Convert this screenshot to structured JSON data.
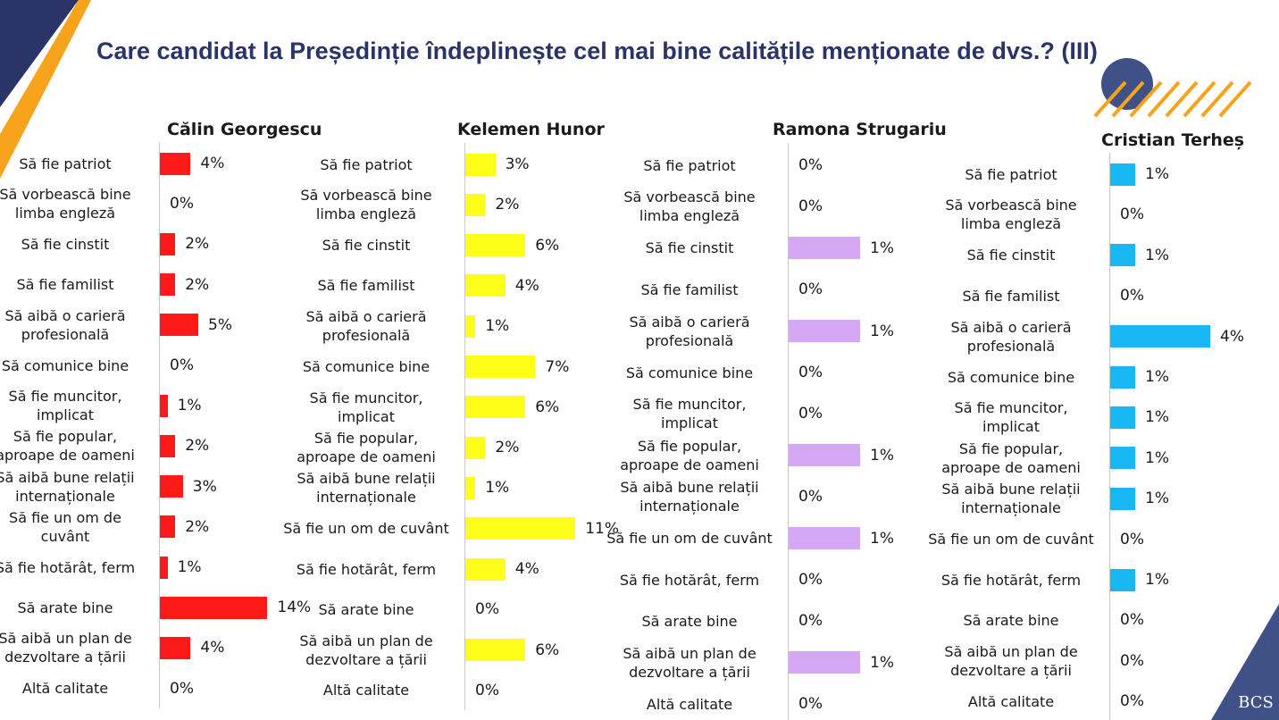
{
  "title": "Care candidat la Președinție îndeplinește cel mai bine calitățile menționate de dvs.? (III)",
  "logo_text": "BCS",
  "colors": {
    "navy": "#2b3467",
    "orange": "#f7a31c",
    "slate": "#3f5187"
  },
  "chart_data": [
    {
      "type": "bar",
      "orientation": "horizontal",
      "title": "Călin Georgescu",
      "color": "#ff1a1a",
      "categories": [
        "Să fie patriot",
        "Să vorbească bine limba engleză",
        "Să fie cinstit",
        "Să fie familist",
        "Să aibă o carieră profesională",
        "Să comunice bine",
        "Să fie muncitor, implicat",
        "Să fie popular, aproape de oameni",
        "Să aibă bune relații internaționale",
        "Să fie un om de cuvânt",
        "Să fie hotărât, ferm",
        "Să arate bine",
        "Să aibă un plan de dezvoltare a țării",
        "Altă calitate"
      ],
      "category_lines": [
        [
          "Să fie patriot"
        ],
        [
          "Să vorbească bine",
          "limba engleză"
        ],
        [
          "Să fie cinstit"
        ],
        [
          "Să fie familist"
        ],
        [
          "Să aibă o carieră",
          "profesională"
        ],
        [
          "Să comunice bine"
        ],
        [
          "Să fie muncitor,",
          "implicat"
        ],
        [
          "Să fie popular,",
          "aproape de oameni"
        ],
        [
          "Să aibă bune relații",
          "internaționale"
        ],
        [
          "Să fie un om de",
          "cuvânt"
        ],
        [
          "Să fie hotărât, ferm"
        ],
        [
          "Să arate bine"
        ],
        [
          "Să aibă un plan de",
          "dezvoltare a țării"
        ],
        [
          "Altă calitate"
        ]
      ],
      "values": [
        4,
        0,
        2,
        2,
        5,
        0,
        1,
        2,
        3,
        2,
        1,
        14,
        4,
        0
      ],
      "labels": [
        "4%",
        "0%",
        "2%",
        "2%",
        "5%",
        "0%",
        "1%",
        "2%",
        "3%",
        "2%",
        "1%",
        "14%",
        "4%",
        "0%"
      ]
    },
    {
      "type": "bar",
      "orientation": "horizontal",
      "title": "Kelemen Hunor",
      "color": "#ffff1a",
      "categories": [
        "Să fie patriot",
        "Să vorbească bine limba engleză",
        "Să fie cinstit",
        "Să fie familist",
        "Să aibă o carieră profesională",
        "Să comunice bine",
        "Să fie muncitor, implicat",
        "Să fie popular, aproape de oameni",
        "Să aibă bune relații internaționale",
        "Să fie un om de cuvânt",
        "Să fie hotărât, ferm",
        "Să arate bine",
        "Să aibă un plan de dezvoltare a țării",
        "Altă calitate"
      ],
      "category_lines": [
        [
          "Să fie patriot"
        ],
        [
          "Să vorbească bine",
          "limba engleză"
        ],
        [
          "Să fie cinstit"
        ],
        [
          "Să fie familist"
        ],
        [
          "Să aibă o carieră",
          "profesională"
        ],
        [
          "Să comunice bine"
        ],
        [
          "Să fie muncitor,",
          "implicat"
        ],
        [
          "Să fie popular,",
          "aproape de oameni"
        ],
        [
          "Să aibă bune relații",
          "internaționale"
        ],
        [
          "Să fie un om de cuvânt"
        ],
        [
          "Să fie hotărât, ferm"
        ],
        [
          "Să arate bine"
        ],
        [
          "Să aibă un plan de",
          "dezvoltare a țării"
        ],
        [
          "Altă calitate"
        ]
      ],
      "values": [
        3,
        2,
        6,
        4,
        1,
        7,
        6,
        2,
        1,
        11,
        4,
        0,
        6,
        0
      ],
      "labels": [
        "3%",
        "2%",
        "6%",
        "4%",
        "1%",
        "7%",
        "6%",
        "2%",
        "1%",
        "11%",
        "4%",
        "0%",
        "6%",
        "0%"
      ]
    },
    {
      "type": "bar",
      "orientation": "horizontal",
      "title": "Ramona Strugariu",
      "color": "#d4a8f4",
      "categories": [
        "Să fie patriot",
        "Să vorbească bine limba engleză",
        "Să fie cinstit",
        "Să fie familist",
        "Să aibă o carieră profesională",
        "Să comunice bine",
        "Să fie muncitor, implicat",
        "Să fie popular, aproape de oameni",
        "Să aibă bune relații internaționale",
        "Să fie un om de cuvânt",
        "Să fie hotărât, ferm",
        "Să arate bine",
        "Să aibă un plan de dezvoltare a țării",
        "Altă calitate"
      ],
      "category_lines": [
        [
          "Să fie patriot"
        ],
        [
          "Să vorbească bine",
          "limba engleză"
        ],
        [
          "Să fie cinstit"
        ],
        [
          "Să fie familist"
        ],
        [
          "Să aibă o carieră",
          "profesională"
        ],
        [
          "Să comunice bine"
        ],
        [
          "Să fie muncitor,",
          "implicat"
        ],
        [
          "Să fie popular,",
          "aproape de oameni"
        ],
        [
          "Să aibă bune relații",
          "internaționale"
        ],
        [
          "Să fie un om de cuvânt"
        ],
        [
          "Să fie hotărât, ferm"
        ],
        [
          "Să arate bine"
        ],
        [
          "Să aibă un plan de",
          "dezvoltare a țării"
        ],
        [
          "Altă calitate"
        ]
      ],
      "values": [
        0,
        0,
        1,
        0,
        1,
        0,
        0,
        1,
        0,
        1,
        0,
        0,
        1,
        0
      ],
      "labels": [
        "0%",
        "0%",
        "1%",
        "0%",
        "1%",
        "0%",
        "0%",
        "1%",
        "0%",
        "1%",
        "0%",
        "0%",
        "1%",
        "0%"
      ]
    },
    {
      "type": "bar",
      "orientation": "horizontal",
      "title": "Cristian Terheș",
      "color": "#1ab7f5",
      "categories": [
        "Să fie patriot",
        "Să vorbească bine limba engleză",
        "Să fie cinstit",
        "Să fie familist",
        "Să aibă o carieră profesională",
        "Să comunice bine",
        "Să fie muncitor, implicat",
        "Să fie popular, aproape de oameni",
        "Să aibă bune relații internaționale",
        "Să fie un om de cuvânt",
        "Să fie hotărât, ferm",
        "Să arate bine",
        "Să aibă un plan de dezvoltare a țării",
        "Altă calitate"
      ],
      "category_lines": [
        [
          "Să fie patriot"
        ],
        [
          "Să vorbească bine",
          "limba engleză"
        ],
        [
          "Să fie cinstit"
        ],
        [
          "Să fie familist"
        ],
        [
          "Să aibă o carieră",
          "profesională"
        ],
        [
          "Să comunice bine"
        ],
        [
          "Să fie muncitor,",
          "implicat"
        ],
        [
          "Să fie popular,",
          "aproape de oameni"
        ],
        [
          "Să aibă bune relații",
          "internaționale"
        ],
        [
          "Să fie un om de cuvânt"
        ],
        [
          "Să fie hotărât, ferm"
        ],
        [
          "Să arate bine"
        ],
        [
          "Să aibă un plan de",
          "dezvoltare a țării"
        ],
        [
          "Altă calitate"
        ]
      ],
      "values": [
        1,
        0,
        1,
        0,
        4,
        1,
        1,
        1,
        1,
        0,
        1,
        0,
        0,
        0
      ],
      "labels": [
        "1%",
        "0%",
        "1%",
        "0%",
        "4%",
        "1%",
        "1%",
        "1%",
        "1%",
        "0%",
        "1%",
        "0%",
        "0%",
        "0%"
      ]
    }
  ]
}
